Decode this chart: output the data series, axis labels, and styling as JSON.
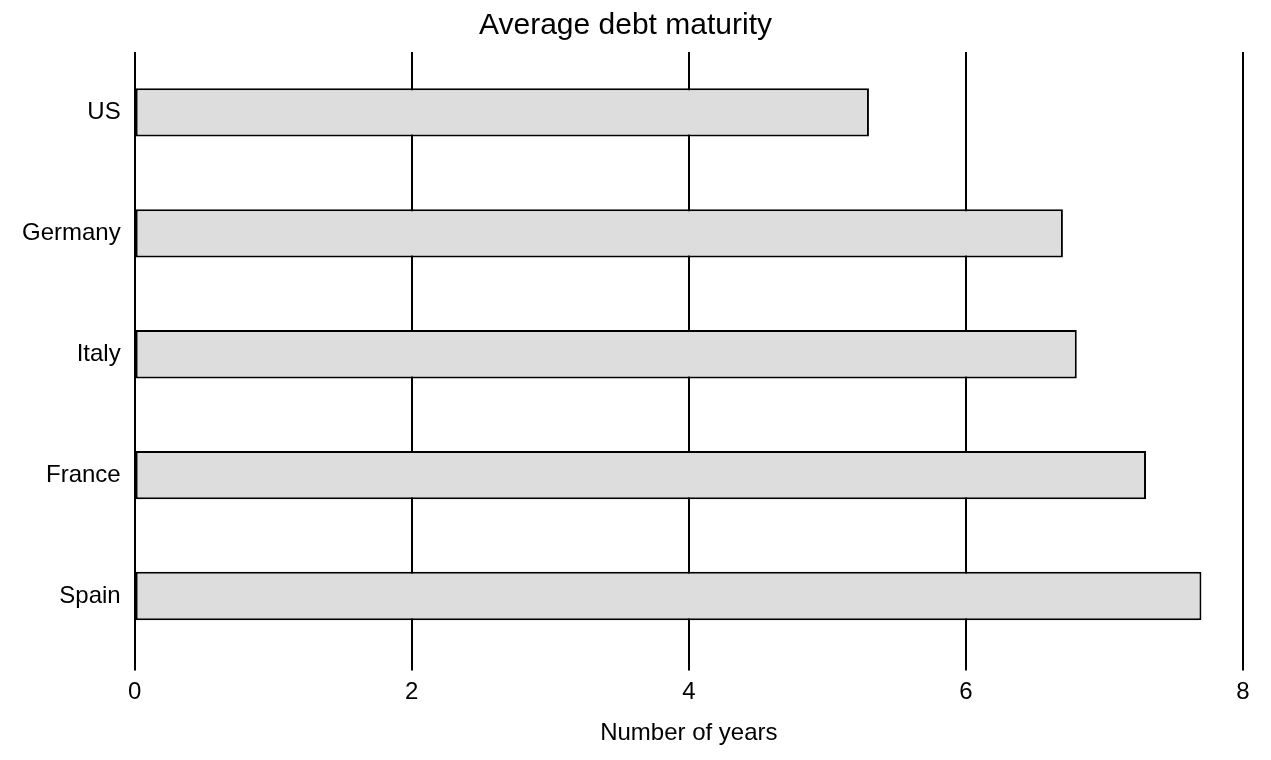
{
  "chart_data": {
    "type": "bar",
    "orientation": "horizontal",
    "title": "Average debt maturity",
    "xlabel": "Number of years",
    "categories": [
      "US",
      "Germany",
      "Italy",
      "France",
      "Spain"
    ],
    "values": [
      5.3,
      6.7,
      6.8,
      7.3,
      7.7
    ],
    "color": "#dddddd",
    "xlim": [
      0,
      8
    ],
    "xticks": [
      0,
      2,
      4,
      6,
      8
    ],
    "grid": "x",
    "legend": false
  }
}
